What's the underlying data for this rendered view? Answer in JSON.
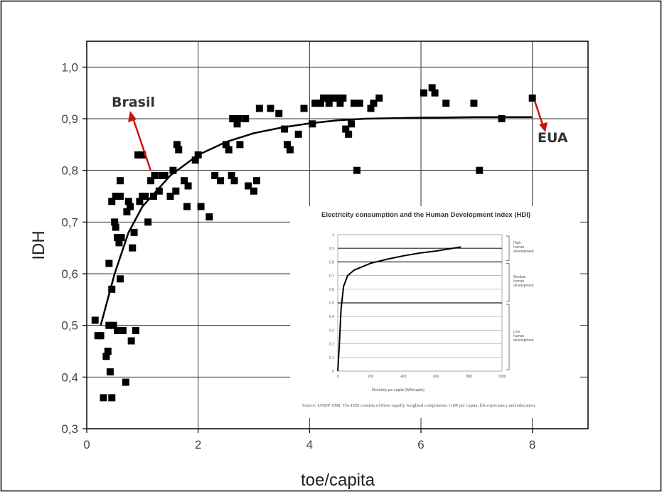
{
  "chart_data": {
    "type": "scatter",
    "xlabel": "toe/capita",
    "ylabel": "IDH",
    "xlim": [
      0,
      9
    ],
    "ylim": [
      0.3,
      1.05
    ],
    "x_ticks": [
      "0",
      "2",
      "4",
      "6",
      "8"
    ],
    "y_ticks": [
      "0,3",
      "0,4",
      "0,5",
      "0,6",
      "0,7",
      "0,8",
      "0,9",
      "1,0"
    ],
    "grid": true,
    "marker": "square",
    "marker_color": "#000000",
    "points": [
      [
        0.15,
        0.51
      ],
      [
        0.2,
        0.48
      ],
      [
        0.25,
        0.48
      ],
      [
        0.3,
        0.36
      ],
      [
        0.35,
        0.44
      ],
      [
        0.38,
        0.45
      ],
      [
        0.4,
        0.62
      ],
      [
        0.4,
        0.5
      ],
      [
        0.42,
        0.41
      ],
      [
        0.45,
        0.36
      ],
      [
        0.45,
        0.57
      ],
      [
        0.45,
        0.74
      ],
      [
        0.48,
        0.5
      ],
      [
        0.5,
        0.7
      ],
      [
        0.52,
        0.75
      ],
      [
        0.52,
        0.69
      ],
      [
        0.55,
        0.49
      ],
      [
        0.55,
        0.67
      ],
      [
        0.58,
        0.66
      ],
      [
        0.6,
        0.59
      ],
      [
        0.6,
        0.75
      ],
      [
        0.6,
        0.78
      ],
      [
        0.62,
        0.67
      ],
      [
        0.65,
        0.49
      ],
      [
        0.7,
        0.39
      ],
      [
        0.72,
        0.72
      ],
      [
        0.75,
        0.74
      ],
      [
        0.78,
        0.73
      ],
      [
        0.8,
        0.47
      ],
      [
        0.82,
        0.65
      ],
      [
        0.85,
        0.68
      ],
      [
        0.88,
        0.49
      ],
      [
        0.92,
        0.83
      ],
      [
        0.95,
        0.74
      ],
      [
        1.0,
        0.83
      ],
      [
        1.0,
        0.75
      ],
      [
        1.05,
        0.75
      ],
      [
        1.1,
        0.7
      ],
      [
        1.15,
        0.78
      ],
      [
        1.2,
        0.75
      ],
      [
        1.22,
        0.79
      ],
      [
        1.3,
        0.76
      ],
      [
        1.35,
        0.79
      ],
      [
        1.4,
        0.79
      ],
      [
        1.5,
        0.75
      ],
      [
        1.55,
        0.8
      ],
      [
        1.6,
        0.76
      ],
      [
        1.62,
        0.85
      ],
      [
        1.65,
        0.84
      ],
      [
        1.75,
        0.78
      ],
      [
        1.8,
        0.73
      ],
      [
        1.82,
        0.77
      ],
      [
        1.95,
        0.82
      ],
      [
        2.0,
        0.83
      ],
      [
        2.05,
        0.73
      ],
      [
        2.2,
        0.71
      ],
      [
        2.3,
        0.79
      ],
      [
        2.4,
        0.78
      ],
      [
        2.5,
        0.85
      ],
      [
        2.55,
        0.84
      ],
      [
        2.6,
        0.79
      ],
      [
        2.62,
        0.9
      ],
      [
        2.65,
        0.78
      ],
      [
        2.7,
        0.89
      ],
      [
        2.72,
        0.9
      ],
      [
        2.75,
        0.85
      ],
      [
        2.85,
        0.9
      ],
      [
        2.9,
        0.77
      ],
      [
        3.0,
        0.76
      ],
      [
        3.05,
        0.78
      ],
      [
        3.1,
        0.92
      ],
      [
        3.3,
        0.92
      ],
      [
        3.45,
        0.91
      ],
      [
        3.55,
        0.88
      ],
      [
        3.6,
        0.85
      ],
      [
        3.65,
        0.84
      ],
      [
        3.8,
        0.87
      ],
      [
        3.9,
        0.92
      ],
      [
        4.05,
        0.89
      ],
      [
        4.1,
        0.93
      ],
      [
        4.15,
        0.93
      ],
      [
        4.2,
        0.93
      ],
      [
        4.25,
        0.94
      ],
      [
        4.3,
        0.94
      ],
      [
        4.35,
        0.93
      ],
      [
        4.4,
        0.94
      ],
      [
        4.45,
        0.94
      ],
      [
        4.5,
        0.94
      ],
      [
        4.55,
        0.93
      ],
      [
        4.6,
        0.94
      ],
      [
        4.65,
        0.88
      ],
      [
        4.7,
        0.87
      ],
      [
        4.75,
        0.89
      ],
      [
        4.8,
        0.93
      ],
      [
        4.85,
        0.8
      ],
      [
        4.9,
        0.93
      ],
      [
        5.1,
        0.92
      ],
      [
        5.15,
        0.93
      ],
      [
        5.25,
        0.94
      ],
      [
        6.05,
        0.95
      ],
      [
        6.2,
        0.96
      ],
      [
        6.25,
        0.95
      ],
      [
        6.45,
        0.93
      ],
      [
        6.95,
        0.93
      ],
      [
        7.05,
        0.8
      ],
      [
        7.45,
        0.9
      ],
      [
        8.0,
        0.94
      ]
    ],
    "fit_curve": [
      [
        0.25,
        0.5
      ],
      [
        0.5,
        0.6
      ],
      [
        0.75,
        0.68
      ],
      [
        1.0,
        0.73
      ],
      [
        1.25,
        0.76
      ],
      [
        1.5,
        0.79
      ],
      [
        1.75,
        0.81
      ],
      [
        2.0,
        0.83
      ],
      [
        2.5,
        0.855
      ],
      [
        3.0,
        0.872
      ],
      [
        3.5,
        0.883
      ],
      [
        4.0,
        0.891
      ],
      [
        4.5,
        0.897
      ],
      [
        5.0,
        0.9
      ],
      [
        6.0,
        0.902
      ],
      [
        7.0,
        0.903
      ],
      [
        8.0,
        0.903
      ]
    ],
    "annotations": [
      {
        "text": "Brasil",
        "arrow_to": [
          1.2,
          0.92
        ]
      },
      {
        "text": "EUA",
        "arrow_to": [
          8.0,
          0.94
        ]
      }
    ],
    "inset": {
      "title": "Electricity consumption and the Human Development Index (HDI)",
      "xlabel": "Electricity per capita (kWh/capita)",
      "x_ticks": [
        "0",
        "200",
        "400",
        "600",
        "800",
        "1000"
      ],
      "y_ticks": [
        "1",
        "0.9",
        "0.8",
        "0.7",
        "0.6",
        "0.5",
        "0.4",
        "0.3",
        "0.2",
        "0.1",
        "0"
      ],
      "bands": [
        {
          "label": "High human development"
        },
        {
          "label": "Medium human development"
        },
        {
          "label": "Low human development"
        }
      ],
      "curve": [
        [
          0,
          0.0
        ],
        [
          10,
          0.2
        ],
        [
          20,
          0.45
        ],
        [
          35,
          0.62
        ],
        [
          60,
          0.7
        ],
        [
          100,
          0.74
        ],
        [
          200,
          0.79
        ],
        [
          300,
          0.82
        ],
        [
          400,
          0.845
        ],
        [
          500,
          0.865
        ],
        [
          600,
          0.88
        ],
        [
          700,
          0.9
        ],
        [
          750,
          0.91
        ]
      ],
      "note": "Source: UNDP 1998. The HDI consists of three equally weighted components: GDP per capita, life expectancy and education."
    }
  }
}
